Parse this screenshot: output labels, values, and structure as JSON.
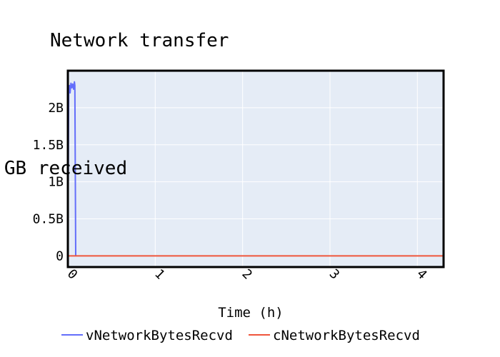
{
  "chart_data": {
    "type": "line",
    "title": "Network transfer",
    "xlabel": "Time (h)",
    "ylabel": "GB received",
    "xlim": [
      0,
      4.3
    ],
    "ylim": [
      -150000000,
      2500000000
    ],
    "x_ticks": [
      0,
      1,
      2,
      3,
      4
    ],
    "x_tick_labels": [
      "0",
      "1",
      "2",
      "3",
      "4"
    ],
    "y_ticks": [
      0,
      500000000,
      1000000000,
      1500000000,
      2000000000
    ],
    "y_tick_labels": [
      "0",
      "0.5B",
      "1B",
      "1.5B",
      "2B"
    ],
    "grid": true,
    "plot_background": "#e5ecf6",
    "legend_position": "bottom",
    "series": [
      {
        "name": "vNetworkBytesRecvd",
        "color": "#636efa",
        "x": [
          0,
          0.01,
          0.02,
          0.025,
          0.035,
          0.045,
          0.055,
          0.065,
          0.075,
          0.08,
          0.09
        ],
        "y": [
          0,
          2250000000,
          2300000000,
          2200000000,
          2330000000,
          2270000000,
          2320000000,
          2250000000,
          2350000000,
          2300000000,
          0
        ]
      },
      {
        "name": "cNetworkBytesRecvd",
        "color": "#ef553b",
        "x": [
          0,
          4.3
        ],
        "y": [
          0,
          0
        ]
      }
    ]
  }
}
